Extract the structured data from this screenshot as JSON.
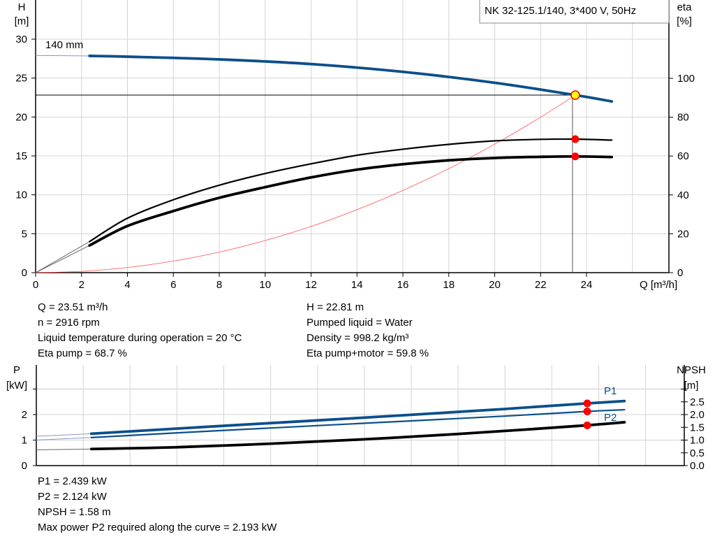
{
  "chart_data": [
    {
      "type": "line",
      "title": "NK 32-125.1/140, 3*400 V, 50Hz",
      "xlabel": "Q [m³/h]",
      "ylabel_left": [
        "H",
        "[m]"
      ],
      "ylabel_right": [
        "eta",
        "[%]"
      ],
      "xlim": [
        0,
        27.6
      ],
      "ylim_left": [
        0,
        35
      ],
      "ylim_right": [
        0,
        140
      ],
      "x_ticks": [
        0,
        2,
        4,
        6,
        8,
        10,
        12,
        14,
        16,
        18,
        20,
        22,
        24
      ],
      "y_ticks_left": [
        0,
        5,
        10,
        15,
        20,
        25,
        30
      ],
      "y_ticks_right": [
        0,
        20,
        40,
        60,
        80,
        100
      ],
      "grid": true,
      "annotation": "140 mm",
      "duty_point": {
        "Q": 23.51,
        "H": 22.81,
        "eta_pump": 68.7,
        "eta_pump_motor": 59.8
      },
      "series": [
        {
          "key": "H",
          "axis": "left",
          "color": "#0b4f8a",
          "thin_until": 2.35,
          "x": [
            0,
            2.35,
            4,
            8,
            12,
            16,
            20,
            23.51,
            25.1
          ],
          "y": [
            27.9,
            27.85,
            27.75,
            27.4,
            26.8,
            25.8,
            24.4,
            22.81,
            22.0
          ]
        },
        {
          "key": "system",
          "axis": "left",
          "color": "#ff0000",
          "x": [
            0,
            2,
            4,
            6,
            8,
            10,
            12,
            14,
            16,
            18,
            20,
            22,
            23.51
          ],
          "y": [
            0,
            0.17,
            0.66,
            1.49,
            2.64,
            4.13,
            5.94,
            8.09,
            10.57,
            13.37,
            16.51,
            19.97,
            22.81
          ]
        },
        {
          "key": "eta_pump",
          "axis": "right",
          "color": "#000000",
          "thin_until": 2.35,
          "x": [
            0,
            2.35,
            4,
            6,
            8,
            10,
            12,
            14,
            16,
            18,
            20,
            22,
            23.51,
            25.1
          ],
          "y": [
            0,
            16,
            28,
            37.5,
            45,
            51,
            56,
            60.4,
            63.5,
            66,
            67.8,
            68.6,
            68.7,
            68.2
          ]
        },
        {
          "key": "eta_pump_motor",
          "axis": "right",
          "color": "#000000",
          "thin_until": 2.35,
          "x": [
            0,
            2.35,
            4,
            6,
            8,
            10,
            12,
            14,
            16,
            18,
            20,
            22,
            23.51,
            25.1
          ],
          "y": [
            0,
            14,
            24,
            31.7,
            38.5,
            44,
            49,
            53,
            55.8,
            57.8,
            59,
            59.6,
            59.8,
            59.5
          ]
        }
      ]
    },
    {
      "type": "line",
      "ylabel_left": [
        "P",
        "[kW]"
      ],
      "ylabel_right": [
        "NPSH",
        "[m]"
      ],
      "xlim": [
        0,
        27.6
      ],
      "ylim_left": [
        0,
        3.9
      ],
      "ylim_right": [
        0,
        3.9
      ],
      "y_ticks_left": [
        0,
        1,
        2
      ],
      "y_ticks_right": [
        "0.0",
        "0.5",
        "1.0",
        "1.5",
        "2.0",
        "2.5"
      ],
      "grid": true,
      "series": [
        {
          "name": "P1",
          "key": "P1",
          "color": "#0b4f8a",
          "thin_until": 2.35,
          "x": [
            0,
            2.35,
            8,
            14,
            20,
            23.51,
            25.1
          ],
          "y": [
            1.15,
            1.25,
            1.56,
            1.88,
            2.22,
            2.439,
            2.53
          ]
        },
        {
          "name": "P2",
          "key": "P2",
          "color": "#0b4f8a",
          "thin_until": 2.35,
          "x": [
            0,
            2.35,
            8,
            14,
            20,
            23.51,
            25.1
          ],
          "y": [
            1.0,
            1.1,
            1.38,
            1.66,
            1.94,
            2.124,
            2.19
          ]
        },
        {
          "key": "NPSH",
          "color": "#000000",
          "thin_until": 2.35,
          "x": [
            0,
            2.35,
            6,
            10,
            14,
            18,
            21,
            23.51,
            25.1
          ],
          "y": [
            0.62,
            0.65,
            0.72,
            0.86,
            1.03,
            1.24,
            1.42,
            1.58,
            1.7
          ]
        }
      ],
      "duty_point": {
        "Q": 23.51,
        "P1": 2.439,
        "P2": 2.124,
        "NPSH": 1.58
      }
    }
  ],
  "info_top_left": [
    "Q = 23.51 m³/h",
    "n = 2916 rpm",
    "Liquid temperature during operation = 20 °C",
    "Eta pump = 68.7 %"
  ],
  "info_top_right": [
    "H = 22.81 m",
    "Pumped liquid = Water",
    "Density = 998.2 kg/m³",
    "Eta pump+motor = 59.8 %"
  ],
  "info_bottom": [
    "P1 = 2.439 kW",
    "P2 = 2.124 kW",
    "NPSH = 1.58 m",
    "Max power P2 required along the curve = 2.193 kW"
  ]
}
